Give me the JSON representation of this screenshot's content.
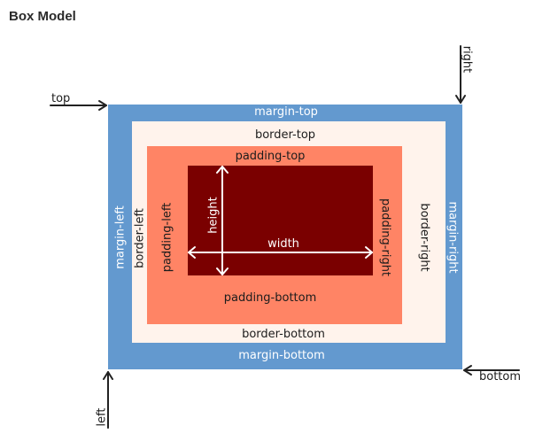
{
  "title": "Box Model",
  "colors": {
    "margin": "#6399cf",
    "border": "#fff3ec",
    "padding": "#ff8465",
    "content": "#7a0000",
    "arrow": "#222222"
  },
  "labels": {
    "margin_top": "margin-top",
    "margin_bottom": "margin-bottom",
    "margin_left": "margin-left",
    "margin_right": "margin-right",
    "border_top": "border-top",
    "border_bottom": "border-bottom",
    "border_left": "border-left",
    "border_right": "border-right",
    "padding_top": "padding-top",
    "padding_bottom": "padding-bottom",
    "padding_left": "padding-left",
    "padding_right": "padding-right",
    "width": "width",
    "height": "height",
    "top": "top",
    "right": "right",
    "bottom": "bottom",
    "left": "left"
  }
}
